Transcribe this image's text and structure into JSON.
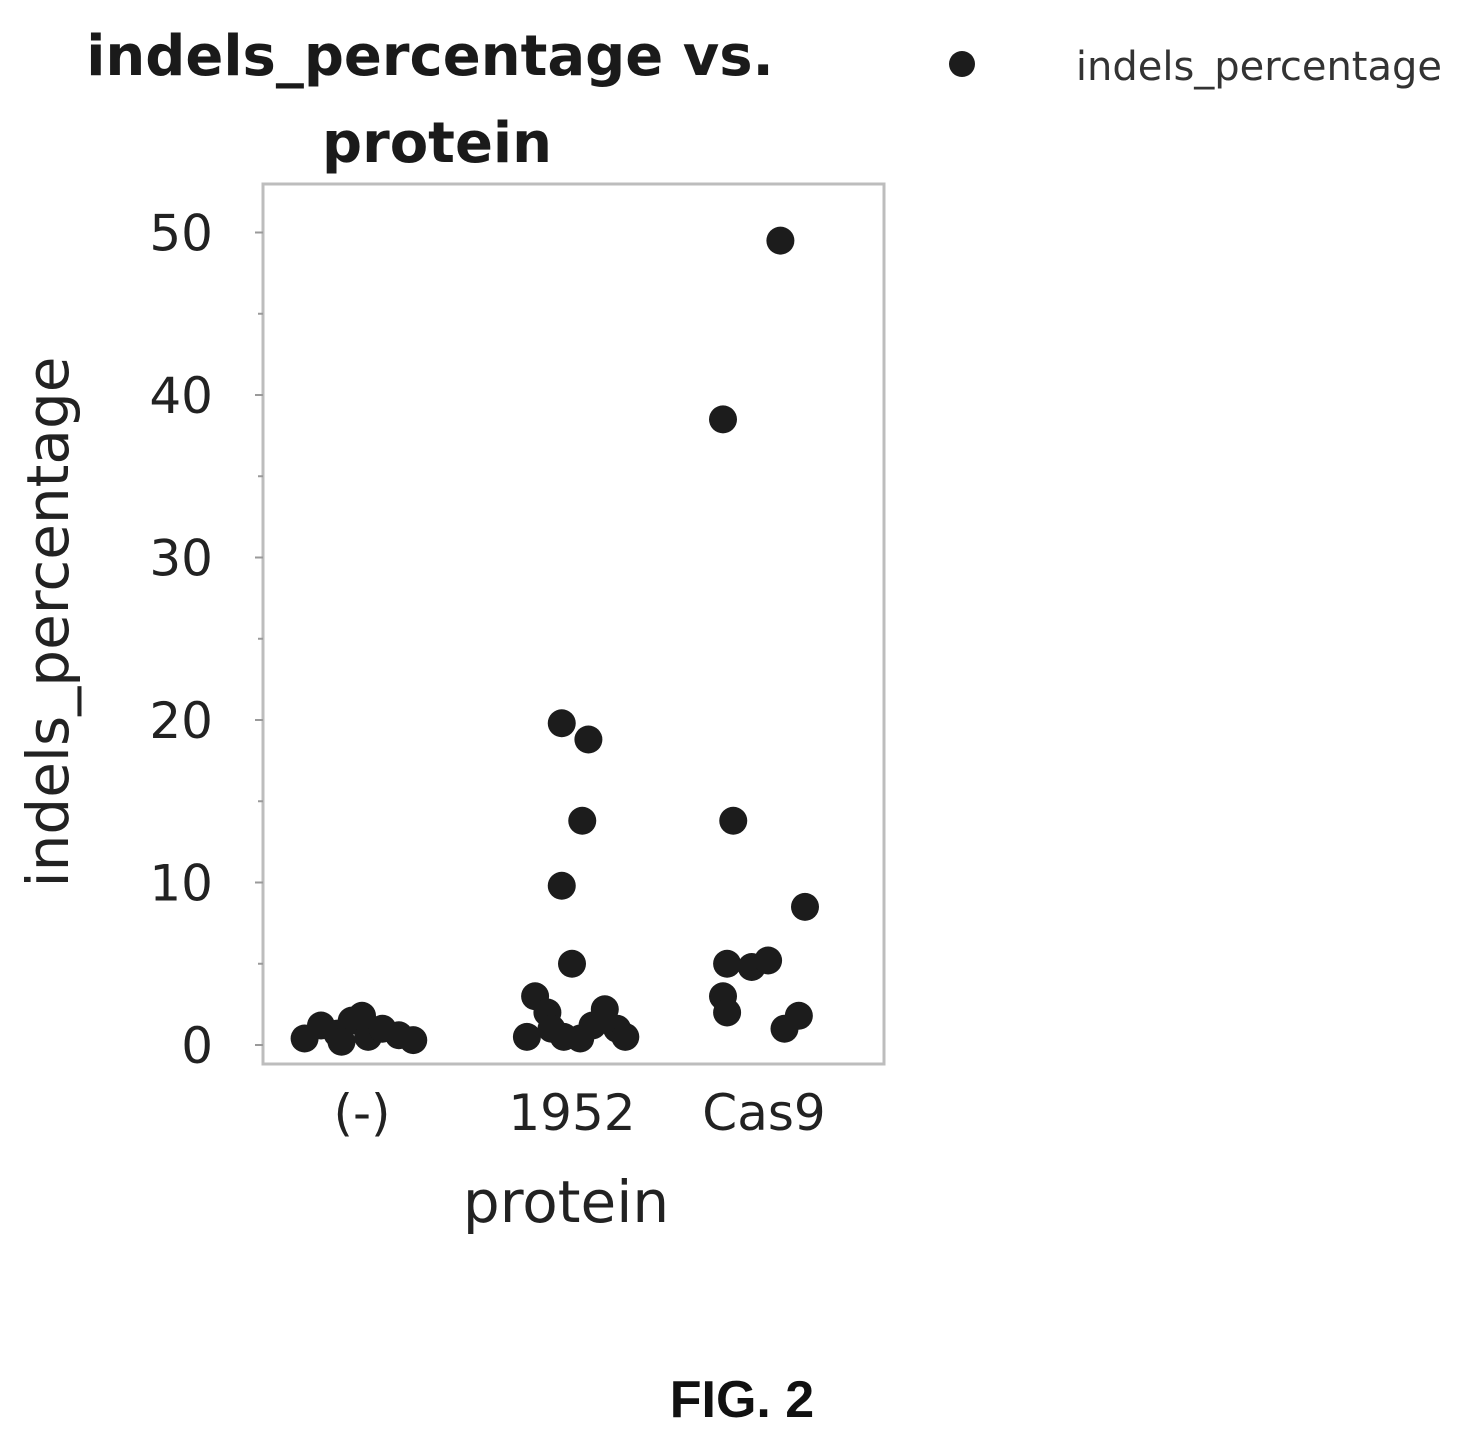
{
  "chart_data": {
    "type": "scatter",
    "title_lines": [
      "indels_percentage vs.",
      "protein"
    ],
    "xlabel": "protein",
    "ylabel": "indels_percentage",
    "categories": [
      "(-)",
      "1952",
      "Cas9"
    ],
    "ylim": [
      -1,
      52.5
    ],
    "yticks": [
      "0",
      "10",
      "20",
      "30",
      "40",
      "50"
    ],
    "ytick_values": [
      0,
      10,
      20,
      30,
      40,
      50
    ],
    "legend": {
      "label": "indels_percentage",
      "position": "top-right, outside plot"
    },
    "grid": false,
    "marker_color": "#1c1c1c",
    "series": [
      {
        "name": "indels_percentage",
        "points": [
          {
            "category": "(-)",
            "jitter": -0.28,
            "y": 0.4
          },
          {
            "category": "(-)",
            "jitter": -0.2,
            "y": 1.2
          },
          {
            "category": "(-)",
            "jitter": -0.12,
            "y": 0.7
          },
          {
            "category": "(-)",
            "jitter": -0.05,
            "y": 1.5
          },
          {
            "category": "(-)",
            "jitter": 0.03,
            "y": 0.5
          },
          {
            "category": "(-)",
            "jitter": 0.1,
            "y": 1.0
          },
          {
            "category": "(-)",
            "jitter": 0.18,
            "y": 0.6
          },
          {
            "category": "(-)",
            "jitter": 0.25,
            "y": 0.3
          },
          {
            "category": "(-)",
            "jitter": -0.1,
            "y": 0.2
          },
          {
            "category": "(-)",
            "jitter": 0.0,
            "y": 1.8
          },
          {
            "category": "1952",
            "jitter": -0.05,
            "y": 19.8
          },
          {
            "category": "1952",
            "jitter": 0.08,
            "y": 18.8
          },
          {
            "category": "1952",
            "jitter": 0.05,
            "y": 13.8
          },
          {
            "category": "1952",
            "jitter": -0.05,
            "y": 9.8
          },
          {
            "category": "1952",
            "jitter": 0.0,
            "y": 5.0
          },
          {
            "category": "1952",
            "jitter": -0.18,
            "y": 3.0
          },
          {
            "category": "1952",
            "jitter": -0.12,
            "y": 2.0
          },
          {
            "category": "1952",
            "jitter": -0.1,
            "y": 1.0
          },
          {
            "category": "1952",
            "jitter": -0.04,
            "y": 0.5
          },
          {
            "category": "1952",
            "jitter": 0.04,
            "y": 0.4
          },
          {
            "category": "1952",
            "jitter": 0.1,
            "y": 1.2
          },
          {
            "category": "1952",
            "jitter": 0.16,
            "y": 2.2
          },
          {
            "category": "1952",
            "jitter": 0.22,
            "y": 1.0
          },
          {
            "category": "1952",
            "jitter": 0.26,
            "y": 0.5
          },
          {
            "category": "1952",
            "jitter": -0.22,
            "y": 0.5
          },
          {
            "category": "Cas9",
            "jitter": 0.08,
            "y": 49.5
          },
          {
            "category": "Cas9",
            "jitter": -0.2,
            "y": 38.5
          },
          {
            "category": "Cas9",
            "jitter": -0.15,
            "y": 13.8
          },
          {
            "category": "Cas9",
            "jitter": 0.2,
            "y": 8.5
          },
          {
            "category": "Cas9",
            "jitter": -0.18,
            "y": 5.0
          },
          {
            "category": "Cas9",
            "jitter": -0.06,
            "y": 4.8
          },
          {
            "category": "Cas9",
            "jitter": 0.02,
            "y": 5.2
          },
          {
            "category": "Cas9",
            "jitter": -0.2,
            "y": 3.0
          },
          {
            "category": "Cas9",
            "jitter": -0.18,
            "y": 2.0
          },
          {
            "category": "Cas9",
            "jitter": 0.1,
            "y": 1.0
          },
          {
            "category": "Cas9",
            "jitter": 0.17,
            "y": 1.8
          }
        ]
      }
    ]
  },
  "caption": "FIG. 2"
}
